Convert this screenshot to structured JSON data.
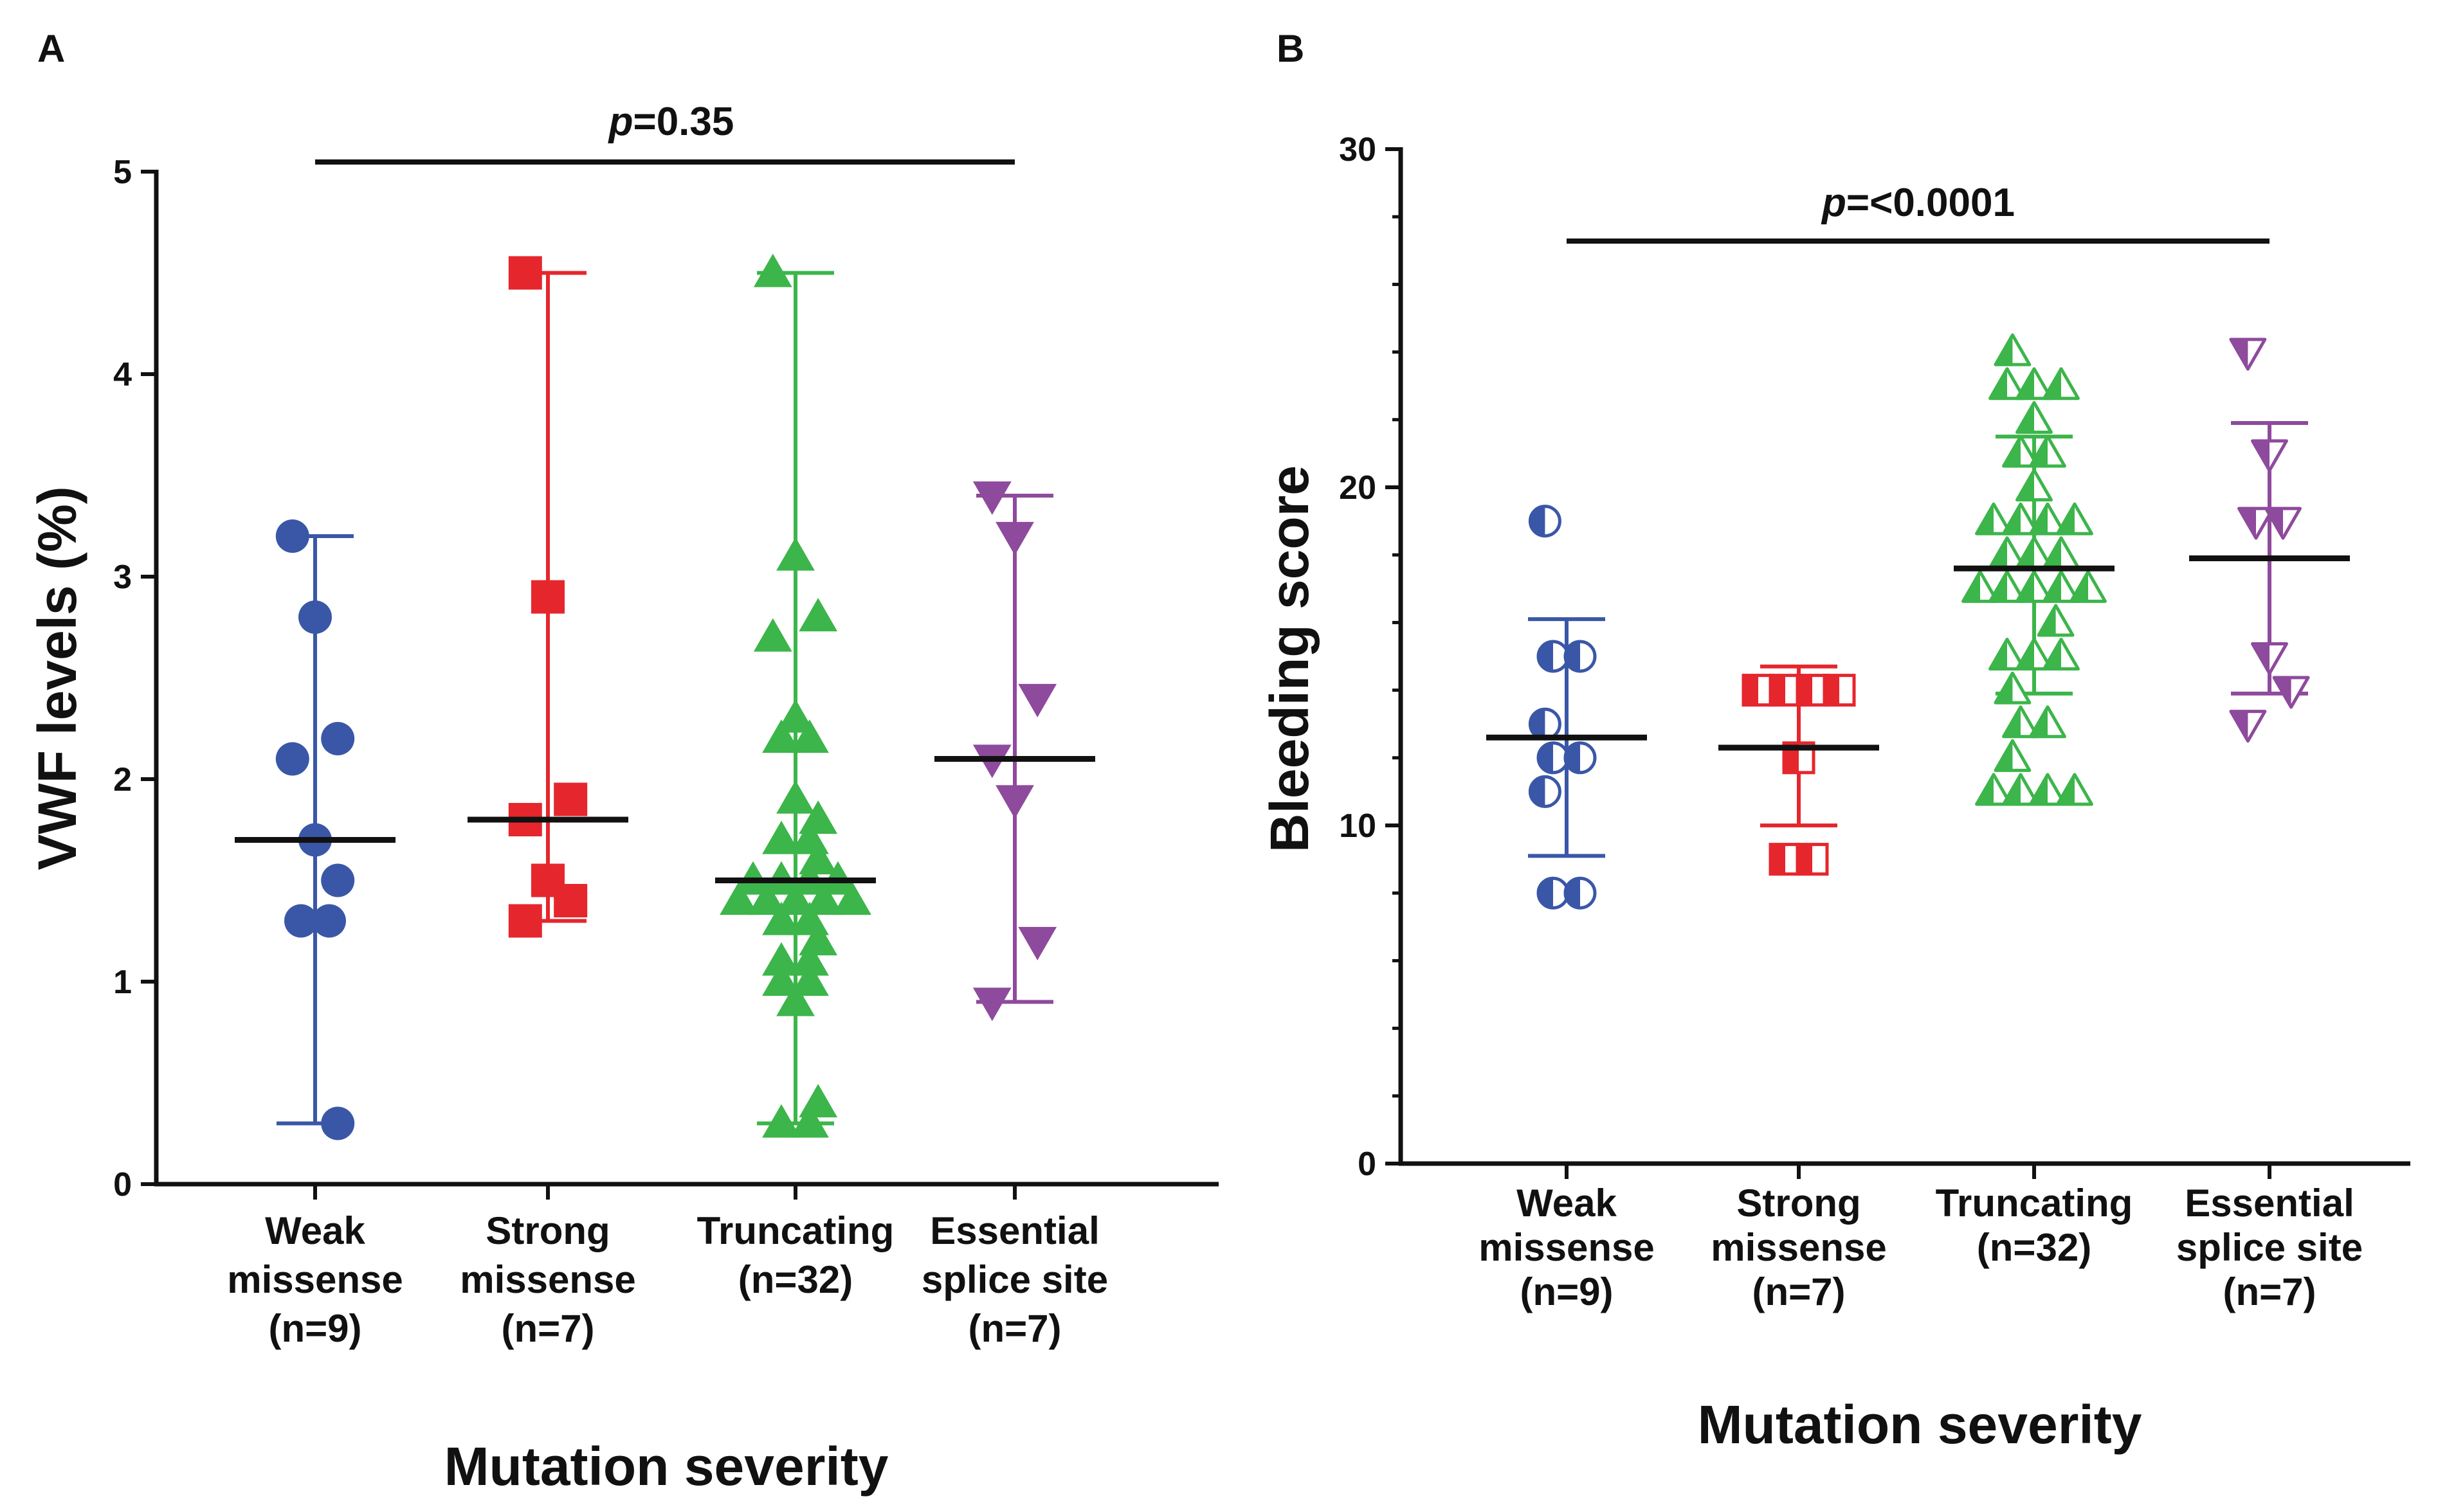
{
  "figure": {
    "panels": [
      "A",
      "B"
    ]
  },
  "chart_data": [
    {
      "panel": "A",
      "type": "scatter",
      "title": "",
      "xlabel": "Mutation severity",
      "ylabel": "VWF levels (%)",
      "ylim": [
        0,
        5
      ],
      "yticks": [
        "0",
        "1",
        "2",
        "3",
        "4",
        "5"
      ],
      "significance": {
        "prefix": "p",
        "value": "=0.35"
      },
      "categories": [
        {
          "label_lines": [
            "Weak",
            "missense",
            "(n=9)"
          ],
          "color": "#3a57a7",
          "marker": "circle-filled",
          "points": [
            3.2,
            2.8,
            2.2,
            2.1,
            1.7,
            1.5,
            1.3,
            1.3,
            0.3
          ],
          "center": 1.7,
          "error_low": 0.3,
          "error_high": 3.2
        },
        {
          "label_lines": [
            "Strong",
            "missense",
            "(n=7)"
          ],
          "color": "#e6262d",
          "marker": "square-filled",
          "points": [
            4.5,
            2.9,
            1.9,
            1.8,
            1.5,
            1.4,
            1.3
          ],
          "center": 1.8,
          "error_low": 1.3,
          "error_high": 4.5
        },
        {
          "label_lines": [
            "Truncating",
            "(n=32)"
          ],
          "color": "#3cb54a",
          "marker": "triangle-up-filled",
          "points": [
            4.5,
            3.1,
            2.8,
            2.7,
            2.3,
            2.2,
            2.2,
            1.9,
            1.8,
            1.7,
            1.7,
            1.6,
            1.5,
            1.5,
            1.5,
            1.5,
            1.4,
            1.4,
            1.4,
            1.4,
            1.4,
            1.3,
            1.3,
            1.2,
            1.1,
            1.1,
            1.0,
            1.0,
            0.9,
            0.4,
            0.3,
            0.3
          ],
          "center": 1.5,
          "error_low": 0.3,
          "error_high": 4.5
        },
        {
          "label_lines": [
            "Essential",
            "splice site",
            "(n=7)"
          ],
          "color": "#8e4a9c",
          "marker": "triangle-down-filled",
          "points": [
            3.4,
            3.2,
            2.4,
            2.1,
            1.9,
            1.2,
            0.9
          ],
          "center": 2.1,
          "error_low": 0.9,
          "error_high": 3.4
        }
      ]
    },
    {
      "panel": "B",
      "type": "scatter",
      "title": "",
      "xlabel": "Mutation severity",
      "ylabel": "Bleeding score",
      "ylim": [
        0,
        30
      ],
      "yticks": [
        "0",
        "10",
        "20",
        "30"
      ],
      "significance": {
        "prefix": "p",
        "value": "=<0.0001"
      },
      "categories": [
        {
          "label_lines": [
            "Weak",
            "missense",
            "(n=9)"
          ],
          "color": "#3a57a7",
          "marker": "circle-half",
          "points": [
            19,
            15,
            15,
            13,
            12,
            12,
            11,
            8,
            8
          ],
          "center": 12.6,
          "error_low": 9.1,
          "error_high": 16.1
        },
        {
          "label_lines": [
            "Strong",
            "missense",
            "(n=7)"
          ],
          "color": "#e6262d",
          "marker": "square-half",
          "points": [
            14,
            14,
            14,
            14,
            12,
            9,
            9
          ],
          "center": 12.3,
          "error_low": 10.0,
          "error_high": 14.7
        },
        {
          "label_lines": [
            "Truncating",
            "(n=32)"
          ],
          "color": "#3cb54a",
          "marker": "triangle-up-half",
          "points": [
            24,
            23,
            23,
            23,
            22,
            21,
            21,
            20,
            19,
            19,
            19,
            19,
            18,
            18,
            18,
            17,
            17,
            17,
            17,
            17,
            16,
            15,
            15,
            15,
            14,
            13,
            13,
            12,
            11,
            11,
            11,
            11
          ],
          "center": 17.6,
          "error_low": 13.9,
          "error_high": 21.5
        },
        {
          "label_lines": [
            "Essential",
            "splice site",
            "(n=7)"
          ],
          "color": "#8e4a9c",
          "marker": "triangle-down-half",
          "points": [
            24,
            21,
            19,
            19,
            15,
            14,
            13
          ],
          "center": 17.9,
          "error_low": 13.9,
          "error_high": 21.9
        }
      ]
    }
  ]
}
